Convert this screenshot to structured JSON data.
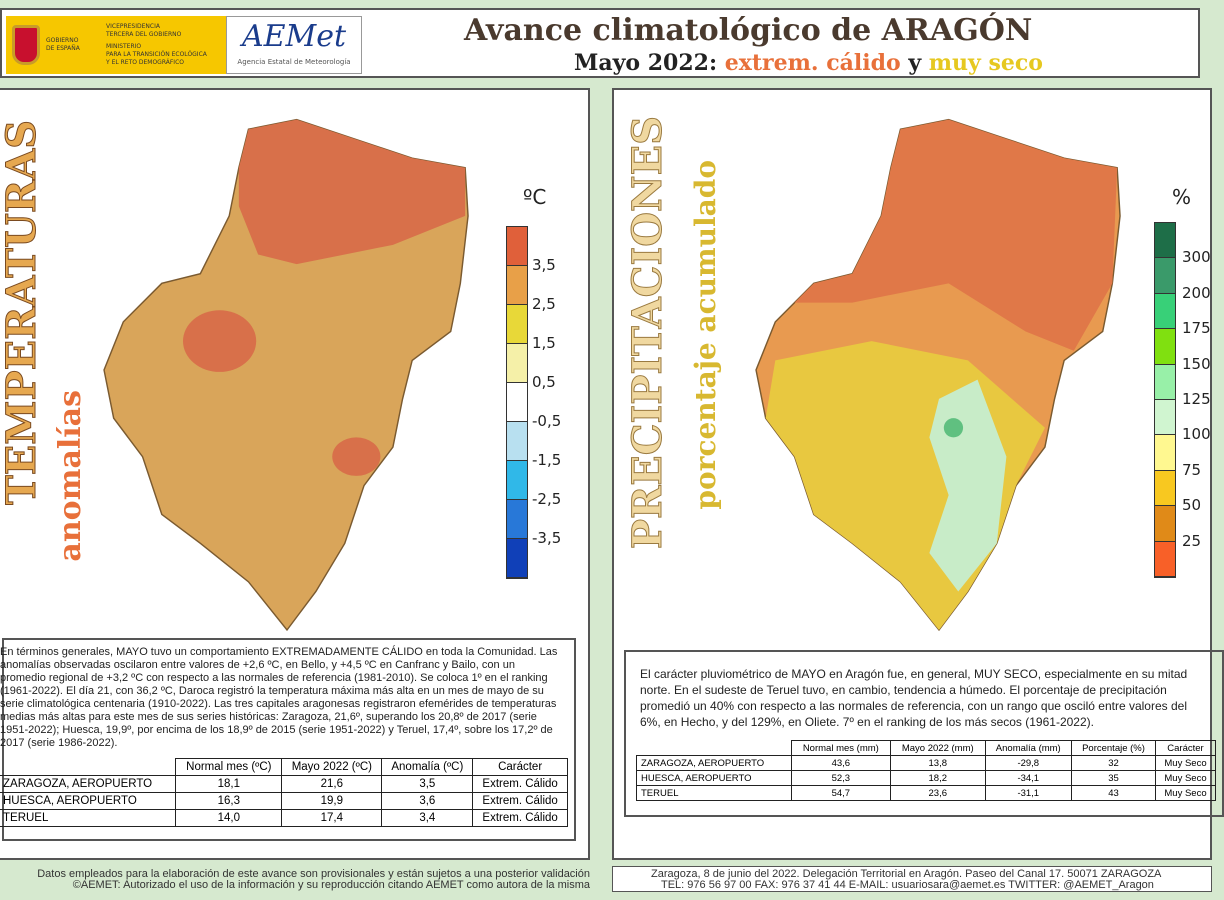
{
  "header": {
    "gov_lines": [
      "GOBIERNO",
      "DE ESPAÑA"
    ],
    "ministry_lines": [
      "VICEPRESIDENCIA",
      "TERCERA DEL GOBIERNO",
      "MINISTERIO",
      "PARA LA TRANSICIÓN ECOLÓGICA",
      "Y EL RETO DEMOGRÁFICO"
    ],
    "aemet_logo": "AEMet",
    "aemet_name": "Agencia Estatal de Meteorología",
    "title": "Avance climatológico de ARAGÓN",
    "subtitle_month": "Mayo 2022:",
    "subtitle_temp": "extrem. cálido",
    "subtitle_and": "y",
    "subtitle_precip": "muy seco",
    "colors": {
      "temp": "#e8703a",
      "precip": "#e6c820"
    }
  },
  "temp": {
    "vertical_title": "TEMPERATURAS",
    "vertical_subtitle": "anomalías",
    "unit": "ºC",
    "legend_labels": [
      "3,5",
      "2,5",
      "1,5",
      "0,5",
      "-0,5",
      "-1,5",
      "-2,5",
      "-3,5"
    ],
    "legend_colors": [
      "#e0603a",
      "#e8a048",
      "#e8d838",
      "#f5f0a8",
      "#ffffff",
      "#b8e0f0",
      "#30b8e8",
      "#2878d8",
      "#1040b8"
    ],
    "text": "En términos generales, MAYO tuvo un comportamiento EXTREMADAMENTE CÁLIDO en toda la Comunidad. Las anomalías observadas oscilaron entre valores de +2,6 ºC, en Bello, y +4,5 ºC en Canfranc y Bailo, con un promedio regional de +3,2 ºC con respecto a las normales de referencia (1981-2010). Se coloca 1º en el ranking (1961-2022). El día 21, con 36,2 ºC, Daroca registró la temperatura máxima más alta en un mes de mayo de su serie climatológica centenaria (1910-2022). Las tres capitales aragonesas registraron efemérides de temperaturas medias más altas para este mes de sus series históricas: Zaragoza, 21,6º, superando los 20,8º de 2017 (serie 1951-2022); Huesca, 19,9º, por encima de los 18,9º de 2015 (serie 1951-2022) y Teruel, 17,4º, sobre los 17,2º de 2017 (serie 1986-2022).",
    "columns": [
      "Normal mes (ºC)",
      "Mayo 2022 (ºC)",
      "Anomalía (ºC)",
      "Carácter"
    ],
    "rows": [
      [
        "ZARAGOZA, AEROPUERTO",
        "18,1",
        "21,6",
        "3,5",
        "Extrem. Cálido"
      ],
      [
        "HUESCA, AEROPUERTO",
        "16,3",
        "19,9",
        "3,6",
        "Extrem. Cálido"
      ],
      [
        "TERUEL",
        "14,0",
        "17,4",
        "3,4",
        "Extrem. Cálido"
      ]
    ]
  },
  "precip": {
    "vertical_title": "PRECIPITACIONES",
    "vertical_subtitle": "porcentaje acumulado",
    "unit": "%",
    "legend_labels": [
      "300",
      "200",
      "175",
      "150",
      "125",
      "100",
      "75",
      "50",
      "25"
    ],
    "legend_colors": [
      "#1e6e48",
      "#3a9a6a",
      "#38d078",
      "#80e010",
      "#98f0a8",
      "#d0f5d0",
      "#fff890",
      "#f8c820",
      "#e08a18",
      "#f86028"
    ],
    "text": "El carácter pluviométrico de MAYO en Aragón fue, en general, MUY SECO, especialmente en su mitad norte. En el sudeste de Teruel tuvo, en cambio, tendencia a húmedo. El porcentaje de precipitación promedió un 40% con respecto a las normales de referencia, con un rango que osciló entre valores del 6%, en Hecho, y del 129%, en Oliete. 7º en el ranking de los más secos (1961-2022).",
    "columns": [
      "Normal mes (mm)",
      "Mayo 2022 (mm)",
      "Anomalía (mm)",
      "Porcentaje (%)",
      "Carácter"
    ],
    "rows": [
      [
        "ZARAGOZA, AEROPUERTO",
        "43,6",
        "13,8",
        "-29,8",
        "32",
        "Muy Seco"
      ],
      [
        "HUESCA, AEROPUERTO",
        "52,3",
        "18,2",
        "-34,1",
        "35",
        "Muy Seco"
      ],
      [
        "TERUEL",
        "54,7",
        "23,6",
        "-31,1",
        "43",
        "Muy Seco"
      ]
    ]
  },
  "footer": {
    "left_line1": "Datos empleados para la elaboración de este avance son provisionales y están sujetos a una posterior validación",
    "left_line2": "©AEMET: Autorizado el uso de la información y su reproducción citando AEMET como autora de la misma",
    "right_line1": "Zaragoza, 8 de junio del 2022. Delegación Territorial en Aragón. Paseo del Canal 17. 50071 ZARAGOZA",
    "right_line2": "TEL: 976 56 97 00  FAX: 976 37 41 44  E-MAIL: usuariosara@aemet.es  TWITTER: @AEMET_Aragon"
  }
}
